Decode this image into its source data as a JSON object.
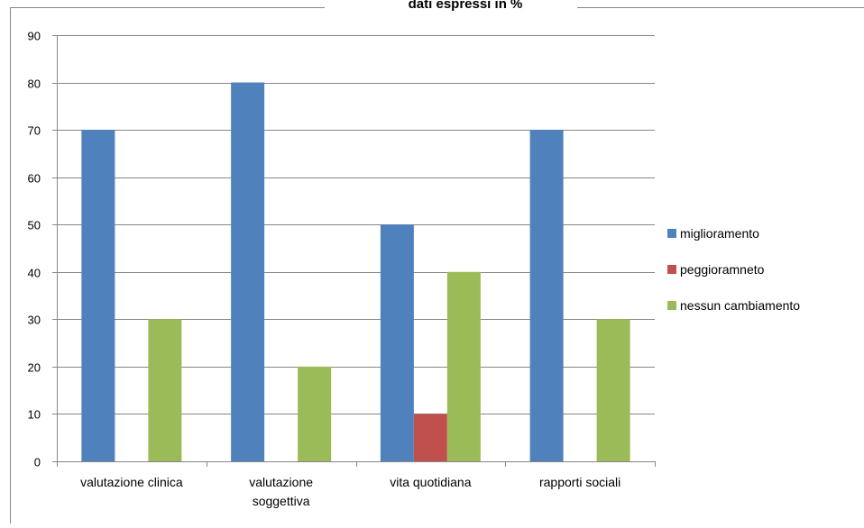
{
  "chart_data": {
    "type": "bar",
    "title": "dati espressi in %",
    "xlabel": "",
    "ylabel": "",
    "ylim": [
      0,
      90
    ],
    "yticks": [
      0,
      10,
      20,
      30,
      40,
      50,
      60,
      70,
      80,
      90
    ],
    "grid": true,
    "legend_position": "right",
    "categories": [
      [
        "valutazione clinica"
      ],
      [
        "valutazione",
        "soggettiva"
      ],
      [
        "vita quotidiana"
      ],
      [
        "rapporti sociali"
      ]
    ],
    "series": [
      {
        "name": "miglioramento",
        "color": "#4F81BD",
        "values": [
          70,
          80,
          50,
          70
        ]
      },
      {
        "name": "peggioramneto",
        "color": "#C0504D",
        "values": [
          0,
          0,
          10,
          0
        ]
      },
      {
        "name": "nessun cambiamento",
        "color": "#9BBB59",
        "values": [
          30,
          20,
          40,
          30
        ]
      }
    ]
  }
}
